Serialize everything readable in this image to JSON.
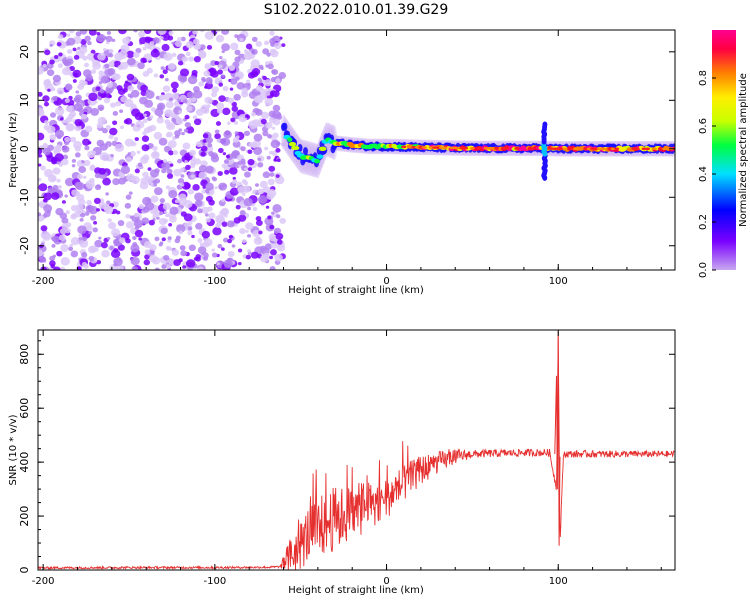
{
  "title": "S102.2022.010.01.39.G29",
  "chart_data": [
    {
      "type": "heatmap",
      "xlabel": "Height of straight line (km)",
      "ylabel": "Frequency (Hz)",
      "xlim": [
        -203,
        168
      ],
      "ylim": [
        -25,
        24.5
      ],
      "xticks": [
        -200,
        -100,
        0,
        100
      ],
      "yticks": [
        -20,
        -10,
        0,
        10,
        20
      ],
      "noise_region_x": [
        -203,
        -60
      ],
      "transition_x": [
        -60,
        -30
      ],
      "signal_track": [
        {
          "x": -60,
          "f": 3.5
        },
        {
          "x": -55,
          "f": 1.0
        },
        {
          "x": -50,
          "f": -1.5
        },
        {
          "x": -45,
          "f": -2.0
        },
        {
          "x": -40,
          "f": -2.5
        },
        {
          "x": -35,
          "f": 2.0
        },
        {
          "x": -30,
          "f": 1.2
        },
        {
          "x": -20,
          "f": 0.8
        },
        {
          "x": -10,
          "f": 0.5
        },
        {
          "x": 0,
          "f": 0.5
        },
        {
          "x": 20,
          "f": 0.3
        },
        {
          "x": 50,
          "f": 0.1
        },
        {
          "x": 90,
          "f": 0.1
        },
        {
          "x": 100,
          "f": 0.0
        },
        {
          "x": 130,
          "f": 0.0
        },
        {
          "x": 168,
          "f": 0.0
        }
      ],
      "spike_x": 92,
      "colorbar": {
        "label": "Normalized spectral amplitude",
        "range": [
          0.0,
          1.0
        ],
        "ticks": [
          0.0,
          0.2,
          0.4,
          0.6,
          0.8
        ],
        "colors": [
          "#c8a8f0",
          "#7a00ff",
          "#0000ff",
          "#00e0ff",
          "#00ff40",
          "#c8ff00",
          "#ffee00",
          "#ff8000",
          "#ff0040",
          "#ff0090"
        ]
      },
      "grid": false
    },
    {
      "type": "line",
      "xlabel": "Height of straight line (km)",
      "ylabel": "SNR (10 * v/v)",
      "xlim": [
        -203,
        168
      ],
      "ylim": [
        0,
        890
      ],
      "xticks": [
        -200,
        -100,
        0,
        100
      ],
      "yticks": [
        0,
        200,
        400,
        600,
        800
      ],
      "series": [
        {
          "color": "#e63030",
          "points": [
            [
              -203,
              8
            ],
            [
              -150,
              9
            ],
            [
              -100,
              9
            ],
            [
              -70,
              10
            ],
            [
              -62,
              12
            ],
            [
              -50,
              90
            ],
            [
              -45,
              140
            ],
            [
              -40,
              150
            ],
            [
              -35,
              175
            ],
            [
              -30,
              190
            ],
            [
              -20,
              210
            ],
            [
              -10,
              240
            ],
            [
              0,
              270
            ],
            [
              10,
              320
            ],
            [
              20,
              370
            ],
            [
              30,
              400
            ],
            [
              40,
              420
            ],
            [
              50,
              430
            ],
            [
              60,
              432
            ],
            [
              80,
              435
            ],
            [
              95,
              435
            ],
            [
              99,
              300
            ],
            [
              100,
              880
            ],
            [
              101,
              90
            ],
            [
              103,
              430
            ],
            [
              120,
              430
            ],
            [
              140,
              430
            ],
            [
              168,
              430
            ]
          ],
          "noise_amplitude": [
            [
              -203,
              4
            ],
            [
              -62,
              4
            ],
            [
              -55,
              80
            ],
            [
              -40,
              120
            ],
            [
              -30,
              120
            ],
            [
              -10,
              90
            ],
            [
              10,
              70
            ],
            [
              30,
              40
            ],
            [
              50,
              15
            ],
            [
              168,
              12
            ]
          ]
        }
      ],
      "grid": false
    }
  ]
}
